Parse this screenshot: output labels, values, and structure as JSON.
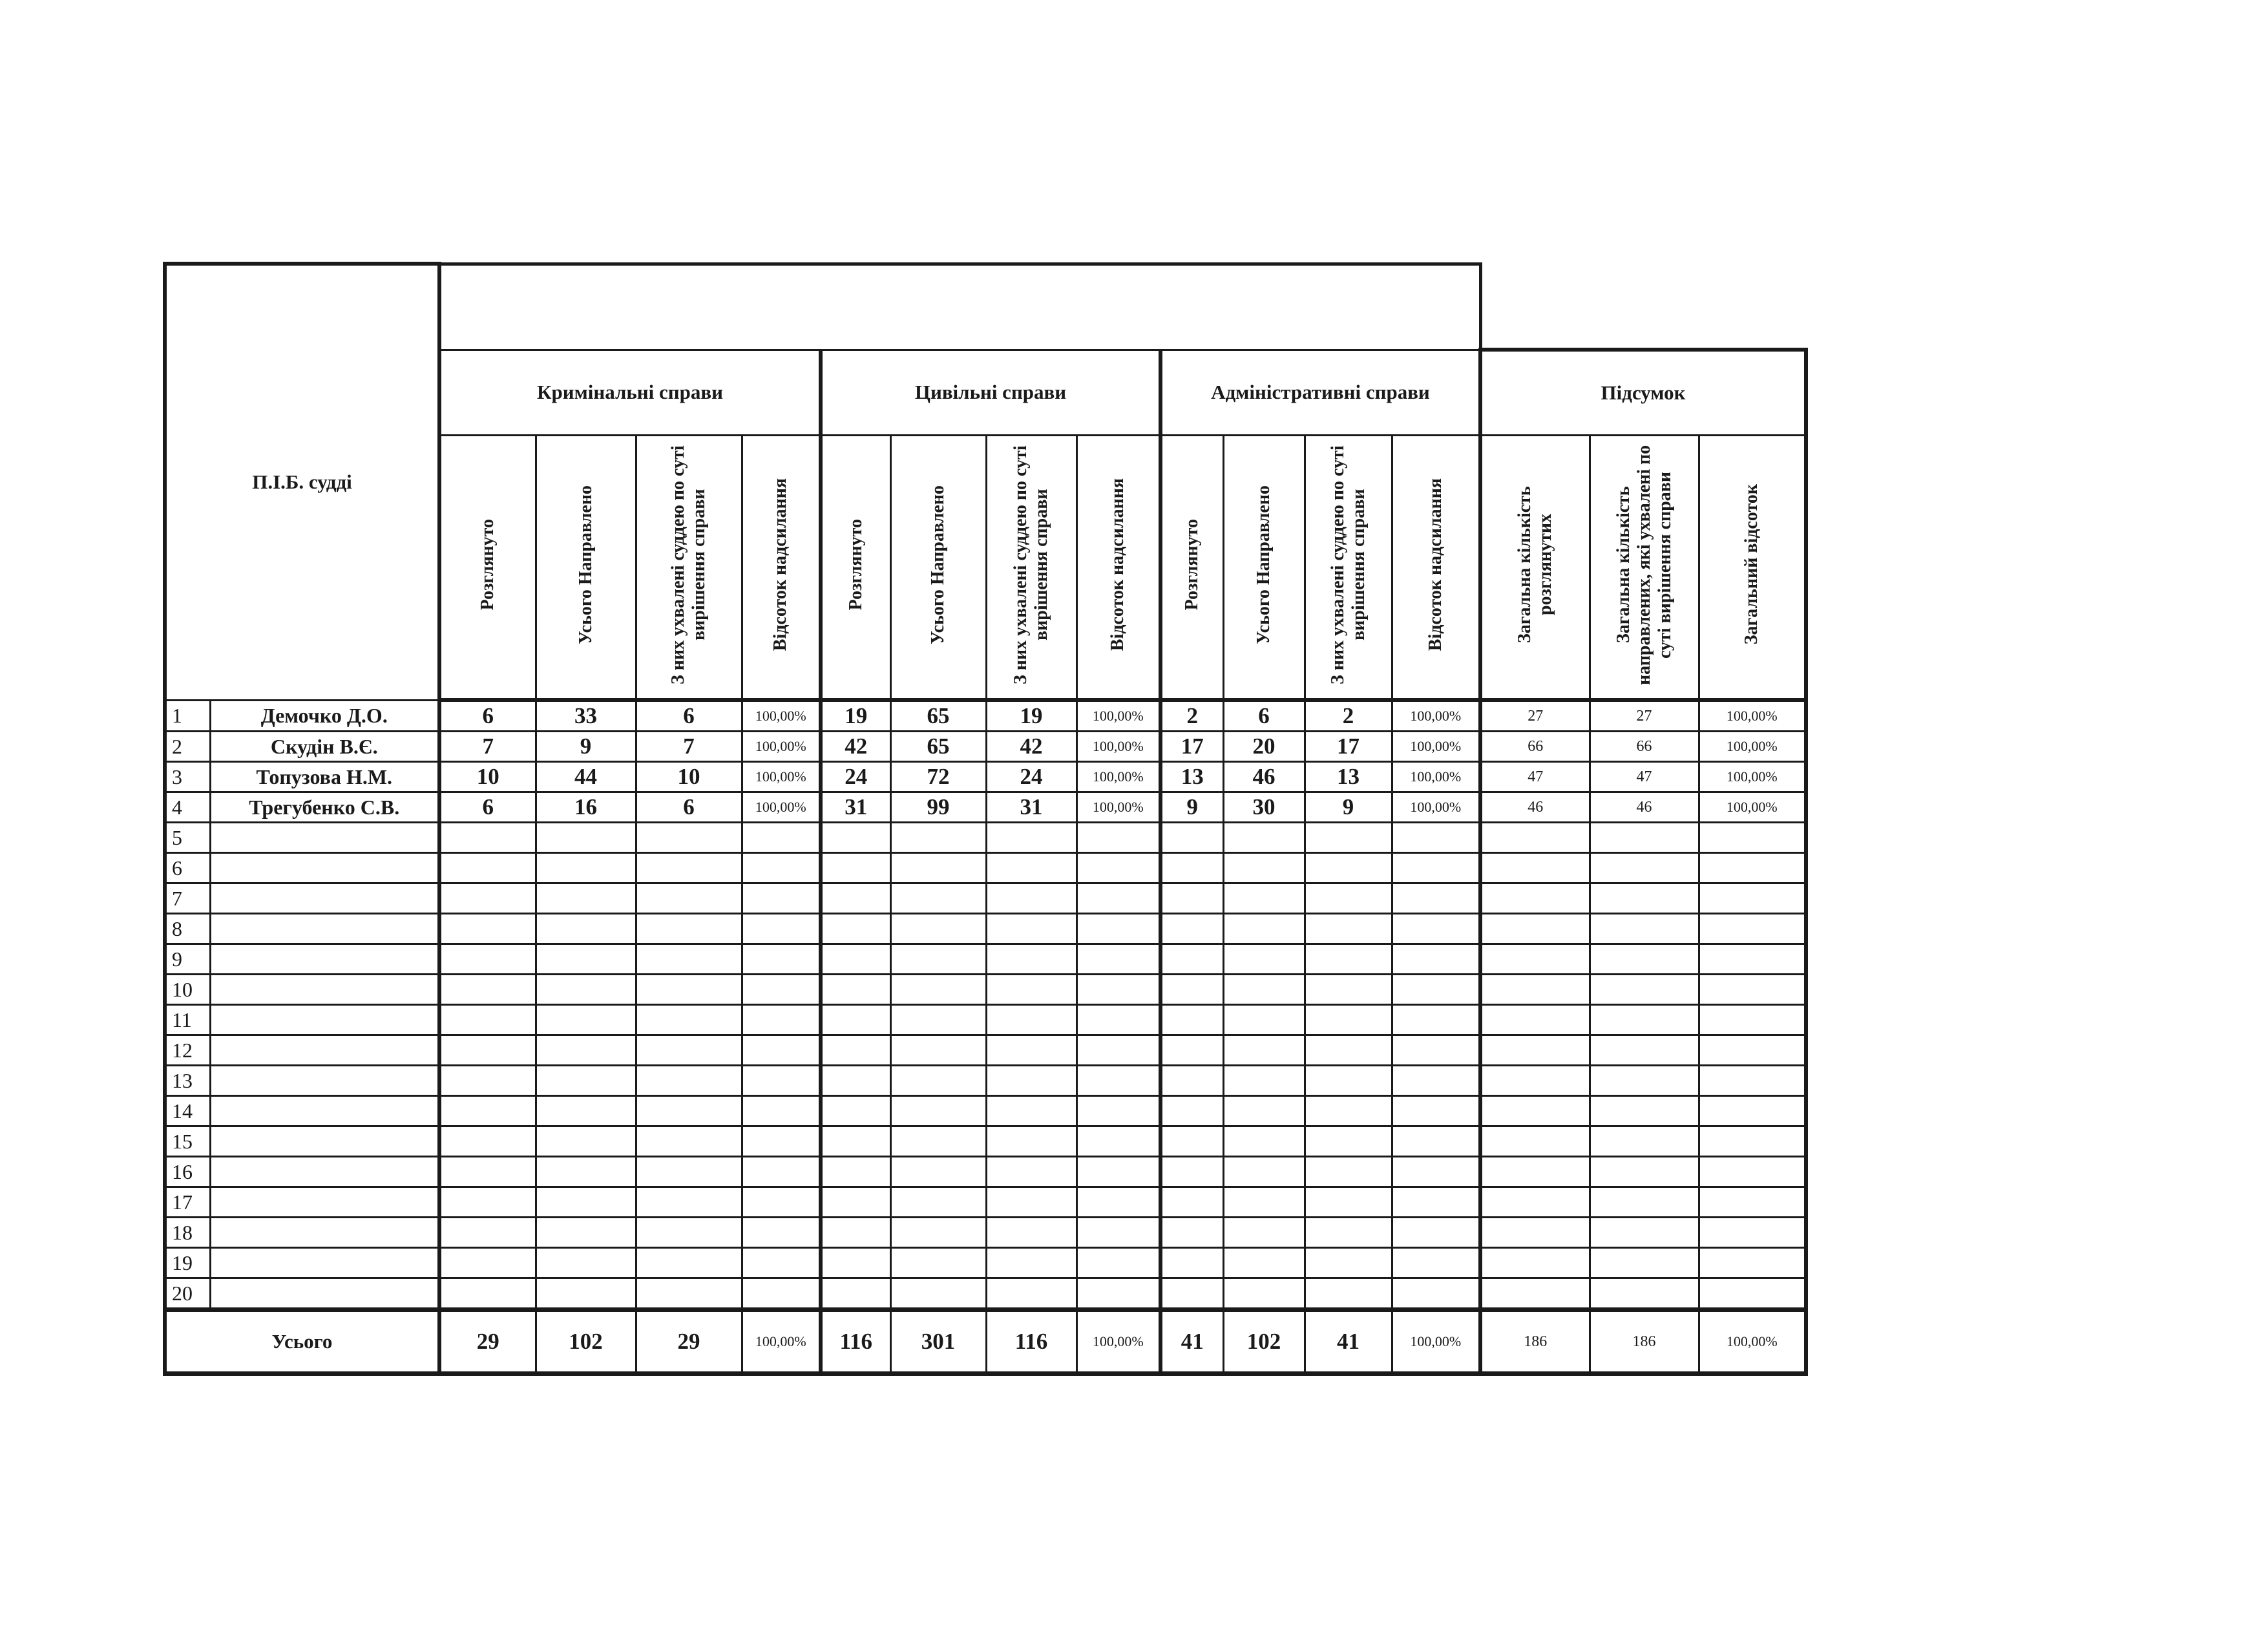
{
  "table": {
    "judge_header": "П.І.Б. судді",
    "title": "",
    "groups": [
      {
        "label": "Кримінальні справи",
        "columns": [
          "Розглянуто",
          "Усього Направлено",
          "З них ухвалені суддею по суті вирішення справи",
          "Відсоток надсилання"
        ]
      },
      {
        "label": "Цивільні справи",
        "columns": [
          "Розглянуто",
          "Усього Направлено",
          "З них ухвалені суддею по суті вирішення справи",
          "Відсоток надсилання"
        ]
      },
      {
        "label": "Адміністративні справи",
        "columns": [
          "Розглянуто",
          "Усього Направлено",
          "З них ухвалені суддею по суті вирішення справи",
          "Відсоток надсилання"
        ]
      },
      {
        "label": "Підсумок",
        "columns": [
          "Загальна кількість розглянутих",
          "Загальна кількість направлених, які ухвалені по суті вирішення справи",
          "Загальний відсоток"
        ]
      }
    ],
    "rows": [
      {
        "n": "1",
        "name": "Демочко Д.О.",
        "values": [
          "6",
          "33",
          "6",
          "100,00%",
          "19",
          "65",
          "19",
          "100,00%",
          "2",
          "6",
          "2",
          "100,00%",
          "27",
          "27",
          "100,00%"
        ]
      },
      {
        "n": "2",
        "name": "Скудін В.Є.",
        "values": [
          "7",
          "9",
          "7",
          "100,00%",
          "42",
          "65",
          "42",
          "100,00%",
          "17",
          "20",
          "17",
          "100,00%",
          "66",
          "66",
          "100,00%"
        ]
      },
      {
        "n": "3",
        "name": "Топузова Н.М.",
        "values": [
          "10",
          "44",
          "10",
          "100,00%",
          "24",
          "72",
          "24",
          "100,00%",
          "13",
          "46",
          "13",
          "100,00%",
          "47",
          "47",
          "100,00%"
        ]
      },
      {
        "n": "4",
        "name": "Трегубенко С.В.",
        "values": [
          "6",
          "16",
          "6",
          "100,00%",
          "31",
          "99",
          "31",
          "100,00%",
          "9",
          "30",
          "9",
          "100,00%",
          "46",
          "46",
          "100,00%"
        ]
      },
      {
        "n": "5",
        "name": "",
        "values": []
      },
      {
        "n": "6",
        "name": "",
        "values": []
      },
      {
        "n": "7",
        "name": "",
        "values": []
      },
      {
        "n": "8",
        "name": "",
        "values": []
      },
      {
        "n": "9",
        "name": "",
        "values": []
      },
      {
        "n": "10",
        "name": "",
        "values": []
      },
      {
        "n": "11",
        "name": "",
        "values": []
      },
      {
        "n": "12",
        "name": "",
        "values": []
      },
      {
        "n": "13",
        "name": "",
        "values": []
      },
      {
        "n": "14",
        "name": "",
        "values": []
      },
      {
        "n": "15",
        "name": "",
        "values": []
      },
      {
        "n": "16",
        "name": "",
        "values": []
      },
      {
        "n": "17",
        "name": "",
        "values": []
      },
      {
        "n": "18",
        "name": "",
        "values": []
      },
      {
        "n": "19",
        "name": "",
        "values": []
      },
      {
        "n": "20",
        "name": "",
        "values": []
      }
    ],
    "total": {
      "label": "Усього",
      "values": [
        "29",
        "102",
        "29",
        "100,00%",
        "116",
        "301",
        "116",
        "100,00%",
        "41",
        "102",
        "41",
        "100,00%",
        "186",
        "186",
        "100,00%"
      ]
    }
  }
}
